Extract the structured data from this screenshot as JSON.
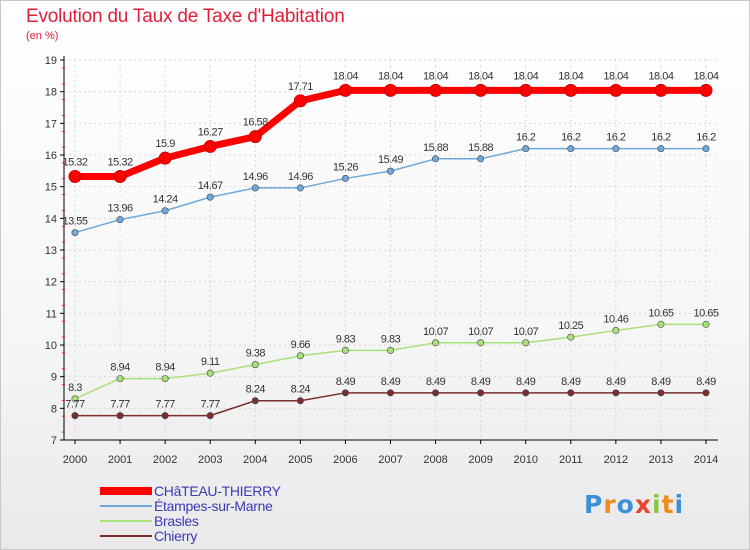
{
  "title": "Evolution du Taux de Taxe d'Habitation",
  "subtitle": "(en %)",
  "logo_text": "Proxiti",
  "chart_data": {
    "type": "line",
    "title": "Evolution du Taux de Taxe d'Habitation",
    "ylabel": "(en %)",
    "xlabel": "",
    "x": [
      2000,
      2001,
      2002,
      2003,
      2004,
      2005,
      2006,
      2007,
      2008,
      2009,
      2010,
      2011,
      2012,
      2013,
      2014
    ],
    "ylim": [
      7,
      19
    ],
    "yticks": [
      7,
      8,
      9,
      10,
      11,
      12,
      13,
      14,
      15,
      16,
      17,
      18,
      19
    ],
    "grid": true,
    "legend_position": "bottom-left",
    "series": [
      {
        "name": "CHâTEAU-THIERRY",
        "color": "#ff0000",
        "values": [
          15.32,
          15.32,
          15.9,
          16.27,
          16.58,
          17.71,
          18.04,
          18.04,
          18.04,
          18.04,
          18.04,
          18.04,
          18.04,
          18.04,
          18.04
        ],
        "labels": [
          "15.32",
          "15.32",
          "15.9",
          "16.27",
          "16.58",
          "17.71",
          "18.04",
          "18.04",
          "18.04",
          "18.04",
          "18.04",
          "18.04",
          "18.04",
          "18.04",
          "18.04"
        ]
      },
      {
        "name": "Étampes-sur-Marne",
        "color": "#6fa8dc",
        "values": [
          13.55,
          13.96,
          14.24,
          14.67,
          14.96,
          14.96,
          15.26,
          15.49,
          15.88,
          15.88,
          16.2,
          16.2,
          16.2,
          16.2,
          16.2
        ],
        "labels": [
          "13.55",
          "13.96",
          "14.24",
          "14.67",
          "14.96",
          "14.96",
          "15.26",
          "15.49",
          "15.88",
          "15.88",
          "16.2",
          "16.2",
          "16.2",
          "16.2",
          "16.2"
        ]
      },
      {
        "name": "Brasles",
        "color": "#a8e07a",
        "values": [
          8.3,
          8.94,
          8.94,
          9.11,
          9.38,
          9.66,
          9.83,
          9.83,
          10.07,
          10.07,
          10.07,
          10.25,
          10.46,
          10.65,
          10.65
        ],
        "labels": [
          "8.3",
          "8.94",
          "8.94",
          "9.11",
          "9.38",
          "9.66",
          "9.83",
          "9.83",
          "10.07",
          "10.07",
          "10.07",
          "10.25",
          "10.46",
          "10.65",
          "10.65"
        ]
      },
      {
        "name": "Chierry",
        "color": "#7a2e2e",
        "values": [
          7.77,
          7.77,
          7.77,
          7.77,
          8.24,
          8.24,
          8.49,
          8.49,
          8.49,
          8.49,
          8.49,
          8.49,
          8.49,
          8.49,
          8.49
        ],
        "labels": [
          "7.77",
          "7.77",
          "7.77",
          "7.77",
          "8.24",
          "8.24",
          "8.49",
          "8.49",
          "8.49",
          "8.49",
          "8.49",
          "8.49",
          "8.49",
          "8.49",
          "8.49"
        ]
      }
    ]
  }
}
